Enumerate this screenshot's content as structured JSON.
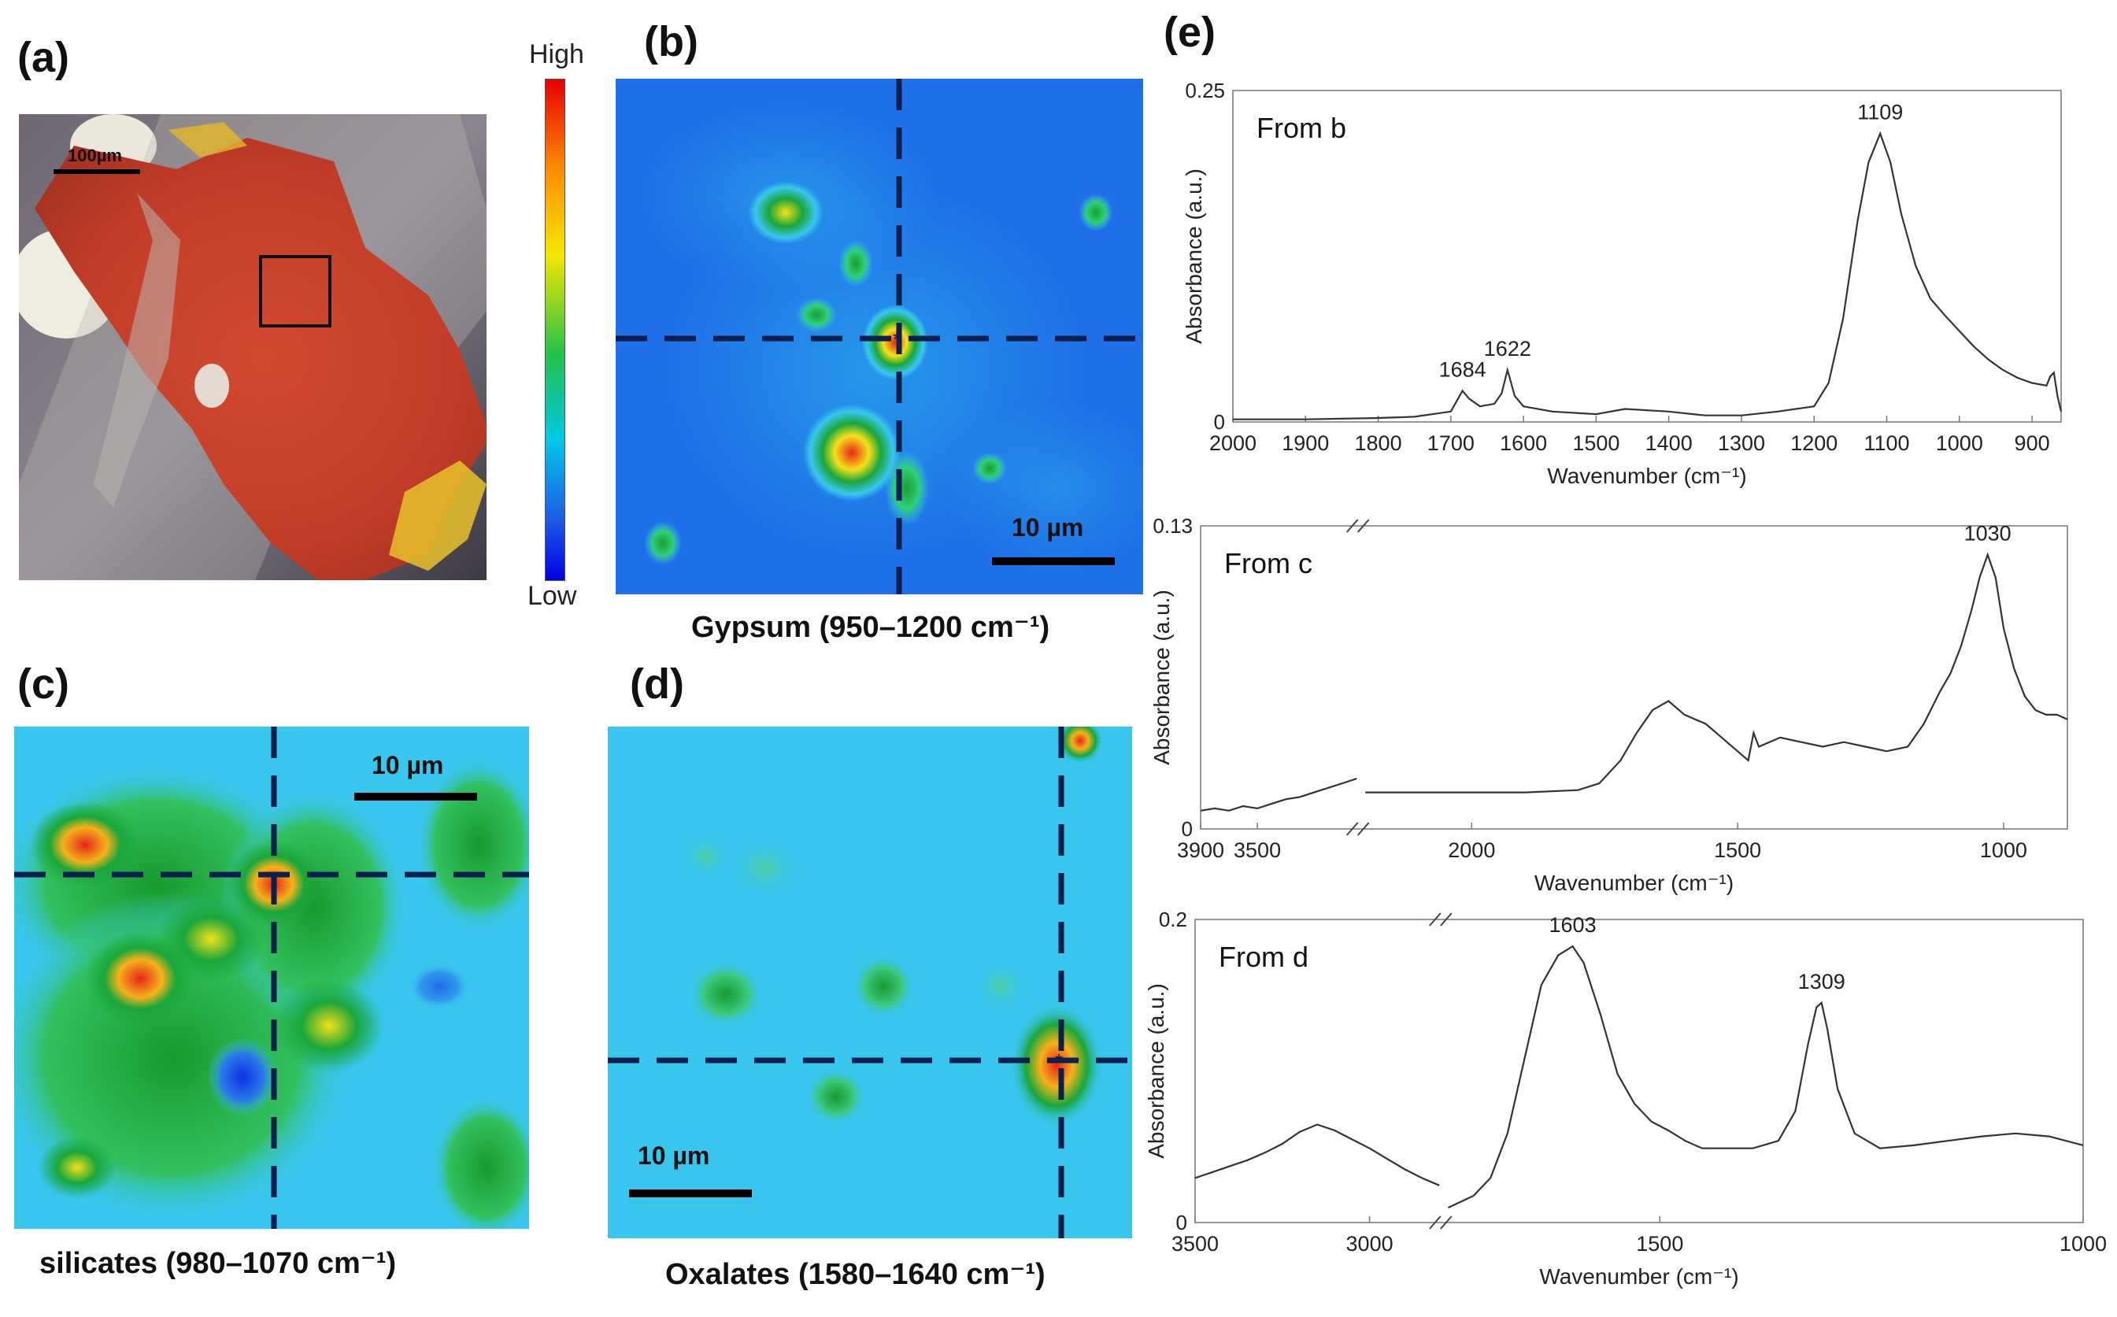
{
  "figure": {
    "panel_a": {
      "label": "(a)",
      "scalebar_label": "100µm"
    },
    "colorbar": {
      "high_label": "High",
      "low_label": "Low"
    },
    "panel_b": {
      "label": "(b)",
      "caption": "Gypsum (950–1200 cm⁻¹)",
      "scalebar_label": "10 µm"
    },
    "panel_c": {
      "label": "(c)",
      "caption": "silicates  (980–1070 cm⁻¹)",
      "scalebar_label": "10 µm"
    },
    "panel_d": {
      "label": "(d)",
      "caption": "Oxalates (1580–1640 cm⁻¹)",
      "scalebar_label": "10 µm"
    },
    "panel_e": {
      "label": "(e)"
    }
  },
  "colors": {
    "map_low": "#0a32e6",
    "map_background_b": "#1f6fe8",
    "map_background_cd": "#39c6ee",
    "map_green": "#1aa63a",
    "map_yellow": "#f5e11a",
    "map_red": "#e6261a",
    "crosshair": "#0d1f4d",
    "spectrum_line": "#333333",
    "sample_red": "#c8412a",
    "sample_white": "#efece0"
  },
  "chart_data": [
    {
      "type": "line",
      "title": "From b",
      "xlabel": "Wavenumber (cm⁻¹)",
      "ylabel": "Absorbance (a.u.)",
      "xlim": [
        2000,
        860
      ],
      "ylim": [
        0,
        0.25
      ],
      "x_ticks": [
        2000,
        1900,
        1800,
        1700,
        1600,
        1500,
        1400,
        1300,
        1200,
        1100,
        1000,
        900
      ],
      "y_ticks": [
        0,
        0.25
      ],
      "peak_labels": [
        {
          "x": 1684,
          "text": "1684"
        },
        {
          "x": 1622,
          "text": "1622"
        },
        {
          "x": 1109,
          "text": "1109"
        }
      ],
      "x": [
        2000,
        1900,
        1800,
        1750,
        1700,
        1690,
        1684,
        1675,
        1660,
        1640,
        1630,
        1622,
        1612,
        1600,
        1560,
        1500,
        1460,
        1400,
        1350,
        1300,
        1250,
        1200,
        1180,
        1160,
        1140,
        1125,
        1109,
        1095,
        1080,
        1060,
        1040,
        1020,
        1000,
        980,
        960,
        940,
        920,
        900,
        880,
        875,
        870,
        865,
        860
      ],
      "y": [
        0.002,
        0.002,
        0.003,
        0.004,
        0.008,
        0.018,
        0.024,
        0.018,
        0.012,
        0.014,
        0.022,
        0.04,
        0.02,
        0.012,
        0.008,
        0.006,
        0.01,
        0.008,
        0.005,
        0.005,
        0.008,
        0.012,
        0.03,
        0.08,
        0.155,
        0.2,
        0.222,
        0.2,
        0.16,
        0.12,
        0.095,
        0.082,
        0.07,
        0.058,
        0.048,
        0.04,
        0.034,
        0.03,
        0.028,
        0.035,
        0.038,
        0.02,
        0.008
      ]
    },
    {
      "type": "line",
      "title": "From c",
      "xlabel": "Wavenumber (cm⁻¹)",
      "ylabel": "Absorbance (a.u.)",
      "axis_break": true,
      "left_segment_xlim": [
        3900,
        2800
      ],
      "right_segment_xlim": [
        2200,
        880
      ],
      "ylim": [
        0,
        0.13
      ],
      "x_ticks": [
        3900,
        3500,
        2000,
        1500,
        1000
      ],
      "y_ticks": [
        0,
        0.13
      ],
      "peak_labels": [
        {
          "x": 1030,
          "text": "1030"
        }
      ],
      "segments": [
        {
          "x": [
            3900,
            3800,
            3700,
            3600,
            3500,
            3400,
            3300,
            3200,
            3100,
            3000,
            2900,
            2800
          ],
          "y": [
            0.008,
            0.009,
            0.008,
            0.01,
            0.009,
            0.011,
            0.013,
            0.014,
            0.016,
            0.018,
            0.02,
            0.022
          ]
        },
        {
          "x": [
            2200,
            2100,
            2000,
            1900,
            1800,
            1760,
            1720,
            1690,
            1660,
            1630,
            1600,
            1560,
            1530,
            1500,
            1480,
            1470,
            1460,
            1420,
            1380,
            1340,
            1300,
            1260,
            1220,
            1180,
            1150,
            1120,
            1100,
            1080,
            1060,
            1045,
            1030,
            1015,
            1000,
            980,
            960,
            940,
            920,
            900,
            880
          ],
          "y": [
            0.016,
            0.016,
            0.016,
            0.016,
            0.017,
            0.02,
            0.03,
            0.042,
            0.052,
            0.056,
            0.05,
            0.046,
            0.04,
            0.034,
            0.03,
            0.042,
            0.036,
            0.04,
            0.038,
            0.036,
            0.038,
            0.036,
            0.034,
            0.036,
            0.046,
            0.06,
            0.068,
            0.08,
            0.096,
            0.11,
            0.12,
            0.11,
            0.088,
            0.07,
            0.058,
            0.052,
            0.05,
            0.05,
            0.048
          ]
        }
      ]
    },
    {
      "type": "line",
      "title": "From d",
      "xlabel": "Wavenumber (cm⁻¹)",
      "ylabel": "Absorbance (a.u.)",
      "axis_break": true,
      "left_segment_xlim": [
        3500,
        2800
      ],
      "right_segment_xlim": [
        1750,
        1000
      ],
      "ylim": [
        0,
        0.2
      ],
      "x_ticks": [
        3500,
        3000,
        1500,
        1000
      ],
      "y_ticks": [
        0,
        0.2
      ],
      "peak_labels": [
        {
          "x": 1603,
          "text": "1603"
        },
        {
          "x": 1309,
          "text": "1309"
        }
      ],
      "segments": [
        {
          "x": [
            3500,
            3450,
            3400,
            3350,
            3300,
            3250,
            3200,
            3150,
            3100,
            3050,
            3000,
            2950,
            2900,
            2850,
            2800
          ],
          "y": [
            0.03,
            0.034,
            0.038,
            0.042,
            0.047,
            0.053,
            0.061,
            0.066,
            0.062,
            0.056,
            0.05,
            0.043,
            0.036,
            0.03,
            0.025
          ]
        },
        {
          "x": [
            1750,
            1720,
            1700,
            1680,
            1660,
            1640,
            1620,
            1603,
            1590,
            1570,
            1550,
            1530,
            1510,
            1490,
            1470,
            1450,
            1420,
            1390,
            1360,
            1340,
            1325,
            1315,
            1309,
            1302,
            1290,
            1270,
            1240,
            1200,
            1160,
            1120,
            1080,
            1040,
            1000
          ],
          "y": [
            0.01,
            0.018,
            0.03,
            0.06,
            0.11,
            0.16,
            0.18,
            0.186,
            0.175,
            0.14,
            0.1,
            0.08,
            0.068,
            0.062,
            0.055,
            0.05,
            0.05,
            0.05,
            0.055,
            0.075,
            0.12,
            0.145,
            0.148,
            0.13,
            0.09,
            0.06,
            0.05,
            0.052,
            0.055,
            0.058,
            0.06,
            0.058,
            0.052
          ]
        }
      ]
    }
  ]
}
